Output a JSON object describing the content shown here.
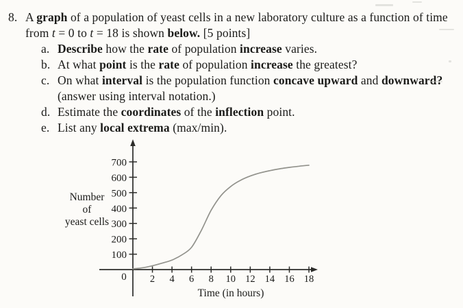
{
  "problem": {
    "number": "8.",
    "line1": [
      {
        "t": "A "
      },
      {
        "t": "graph",
        "b": 1
      },
      {
        "t": " of a population of yeast cells in a new laboratory culture as a function of time"
      }
    ],
    "line2": [
      {
        "t": "from "
      },
      {
        "t": "t",
        "i": 1
      },
      {
        "t": " = 0 to "
      },
      {
        "t": "t",
        "i": 1
      },
      {
        "t": " = 18 is shown "
      },
      {
        "t": "below.",
        "b": 1
      },
      {
        "t": " [5 points]"
      }
    ],
    "parts": [
      {
        "label": "a.",
        "text": [
          {
            "t": "Describe",
            "b": 1
          },
          {
            "t": " how the "
          },
          {
            "t": "rate",
            "b": 1
          },
          {
            "t": " of population "
          },
          {
            "t": "increase",
            "b": 1
          },
          {
            "t": " varies."
          }
        ]
      },
      {
        "label": "b.",
        "text": [
          {
            "t": "At what "
          },
          {
            "t": "point",
            "b": 1
          },
          {
            "t": " is the "
          },
          {
            "t": "rate",
            "b": 1
          },
          {
            "t": " of population "
          },
          {
            "t": "increase",
            "b": 1
          },
          {
            "t": " the greatest?"
          }
        ]
      },
      {
        "label": "c.",
        "text": [
          {
            "t": "On what "
          },
          {
            "t": "interval",
            "b": 1
          },
          {
            "t": " is the population function "
          },
          {
            "t": "concave upward",
            "b": 1
          },
          {
            "t": " and "
          },
          {
            "t": "downward?",
            "b": 1
          }
        ],
        "text2": [
          {
            "t": "(answer using interval notation.)"
          }
        ]
      },
      {
        "label": "d.",
        "text": [
          {
            "t": "Estimate the "
          },
          {
            "t": "coordinates",
            "b": 1
          },
          {
            "t": " of the "
          },
          {
            "t": "inflection",
            "b": 1
          },
          {
            "t": " point."
          }
        ]
      },
      {
        "label": "e.",
        "text": [
          {
            "t": "List any "
          },
          {
            "t": "local extrema",
            "b": 1
          },
          {
            "t": " (max/min)."
          }
        ]
      }
    ]
  },
  "chart_data": {
    "type": "line",
    "title": "",
    "xlabel": "Time (in hours)",
    "ylabel": "Number of yeast cells",
    "ylabel_lines": [
      "Number",
      "of",
      "yeast cells"
    ],
    "origin_label": "0",
    "x_ticks": [
      2,
      4,
      6,
      8,
      10,
      12,
      14,
      16,
      18
    ],
    "y_ticks": [
      100,
      200,
      300,
      400,
      500,
      600,
      700
    ],
    "xlim": [
      0,
      19.5
    ],
    "ylim": [
      0,
      780
    ],
    "grid": false,
    "legend": false,
    "series": [
      {
        "name": "yeast-population",
        "x": [
          0,
          1,
          2,
          3,
          4,
          5,
          6,
          7,
          8,
          9,
          10,
          11,
          12,
          13,
          14,
          15,
          16,
          17,
          18
        ],
        "y": [
          5,
          12,
          25,
          42,
          62,
          95,
          145,
          255,
          385,
          480,
          540,
          580,
          608,
          628,
          643,
          655,
          664,
          672,
          678
        ]
      }
    ],
    "colors": {
      "axis": "#2c2c2a",
      "text": "#1b1b19",
      "curve": "#92928c"
    }
  }
}
